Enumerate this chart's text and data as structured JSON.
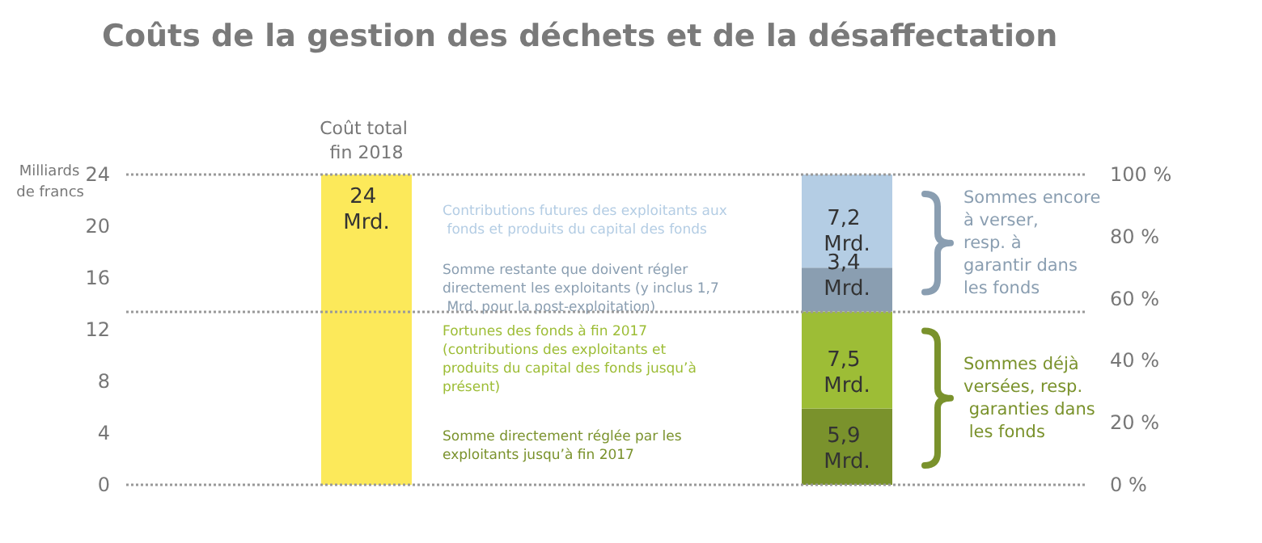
{
  "chart_data": {
    "type": "bar",
    "title": "Coûts de la gestion des déchets et de la désaffectation",
    "ylabel": "Milliards de francs",
    "categories": [
      "Coût total fin 2018",
      null
    ],
    "stacked": true,
    "series": [
      {
        "color": "#fce95a",
        "values": [
          24,
          null
        ],
        "value_labels": [
          "24 Mrd.",
          null
        ]
      },
      {
        "name": "Somme directement réglée par les exploitants jusqu’à fin 2017",
        "color": "#7a922c",
        "values": [
          null,
          5.9
        ],
        "value_labels": [
          null,
          "5,9 Mrd."
        ]
      },
      {
        "name": "Fortunes des fonds à fin 2017 (contributions des exploitants et produits du capital des fonds jusqu’à présent)",
        "color": "#9dbd36",
        "values": [
          null,
          7.5
        ],
        "value_labels": [
          null,
          "7,5 Mrd."
        ]
      },
      {
        "name": "Somme restante que doivent régler directement les exploitants (y inclus 1,7 Mrd. pour la post-exploitation)",
        "color": "#8a9eb1",
        "values": [
          null,
          3.4
        ],
        "value_labels": [
          null,
          "3,4 Mrd."
        ]
      },
      {
        "name": "Contributions futures des exploitants aux fonds et produits du capital des fonds",
        "color": "#b4cde4",
        "values": [
          null,
          7.2
        ],
        "value_labels": [
          null,
          "7,2 Mrd."
        ]
      }
    ],
    "ylim": [
      0,
      24
    ],
    "yticks": [
      0,
      4,
      8,
      12,
      16,
      20,
      24
    ],
    "y2lim": [
      0,
      100
    ],
    "y2ticks": [
      {
        "value": 0,
        "label": "0 %"
      },
      {
        "value": 20,
        "label": "20 %"
      },
      {
        "value": 40,
        "label": "40 %"
      },
      {
        "value": 60,
        "label": "60 %"
      },
      {
        "value": 80,
        "label": "80 %"
      },
      {
        "value": 100,
        "label": "100 %"
      }
    ],
    "ref_lines": [
      {
        "axis": "y",
        "value": 24,
        "color": "#999999",
        "line_style": "dotted"
      },
      {
        "axis": "y",
        "value": 13.4,
        "color": "#999999",
        "line_style": "dotted"
      },
      {
        "axis": "y",
        "value": 0,
        "color": "#999999",
        "line_style": "dotted"
      }
    ],
    "annotations": [
      "Sommes encore à verser, resp. à garantir dans les fonds",
      "Sommes déjà versées, resp. garanties dans les fonds"
    ],
    "grid": false,
    "legend": false
  }
}
